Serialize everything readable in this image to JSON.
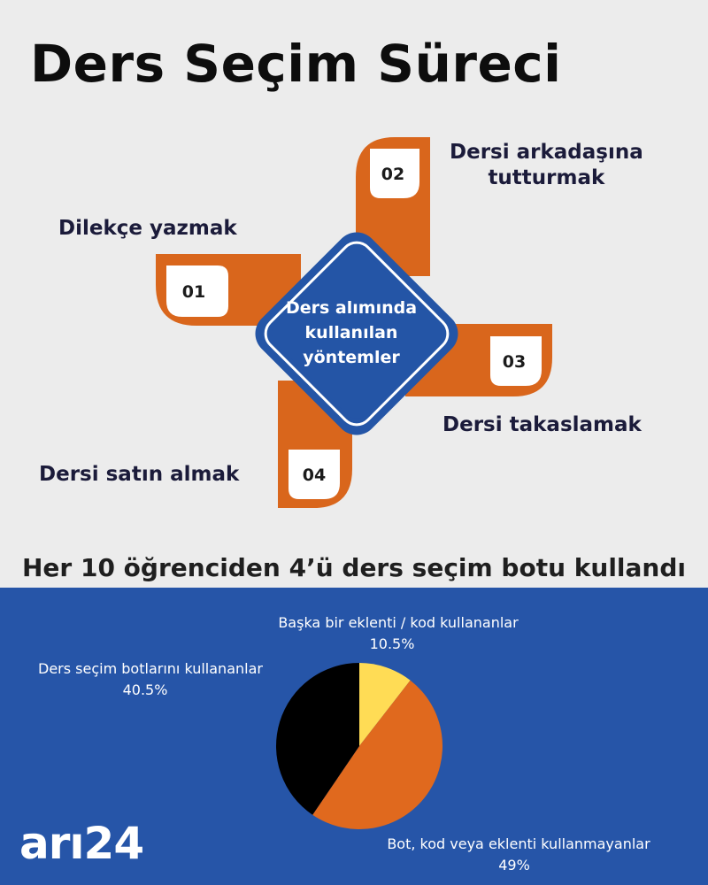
{
  "title": "Ders Seçim Süreci",
  "diagram": {
    "center_lines": [
      "Ders alımında",
      "kullanılan",
      "yöntemler"
    ],
    "steps": [
      {
        "number": "01",
        "label_lines": [
          "Dilekçe yazmak"
        ]
      },
      {
        "number": "02",
        "label_lines": [
          "Dersi arkadaşına",
          "tutturmak"
        ]
      },
      {
        "number": "03",
        "label_lines": [
          "Dersi takaslamak"
        ]
      },
      {
        "number": "04",
        "label_lines": [
          "Dersi satın almak"
        ]
      }
    ],
    "colors": {
      "orange": "#d9661c",
      "blue": "#2455a6",
      "navy": "#1b1b3a"
    }
  },
  "chart_data": {
    "type": "pie",
    "title": "Her 10 öğrenciden 4’ü ders seçim botu kullandı",
    "slices": [
      {
        "label": "Başka bir eklenti / kod kullananlar",
        "value": 10.5,
        "value_label": "10.5%",
        "color": "#ffdc55"
      },
      {
        "label": "Bot, kod veya eklenti kullanmayanlar",
        "value": 49,
        "value_label": "49%",
        "color": "#e0691e"
      },
      {
        "label": "Ders seçim botlarını kullananlar",
        "value": 40.5,
        "value_label": "40.5%",
        "color": "#000000"
      }
    ],
    "legend": "none"
  },
  "logo": {
    "text_a": "arı",
    "text_b": "24"
  }
}
